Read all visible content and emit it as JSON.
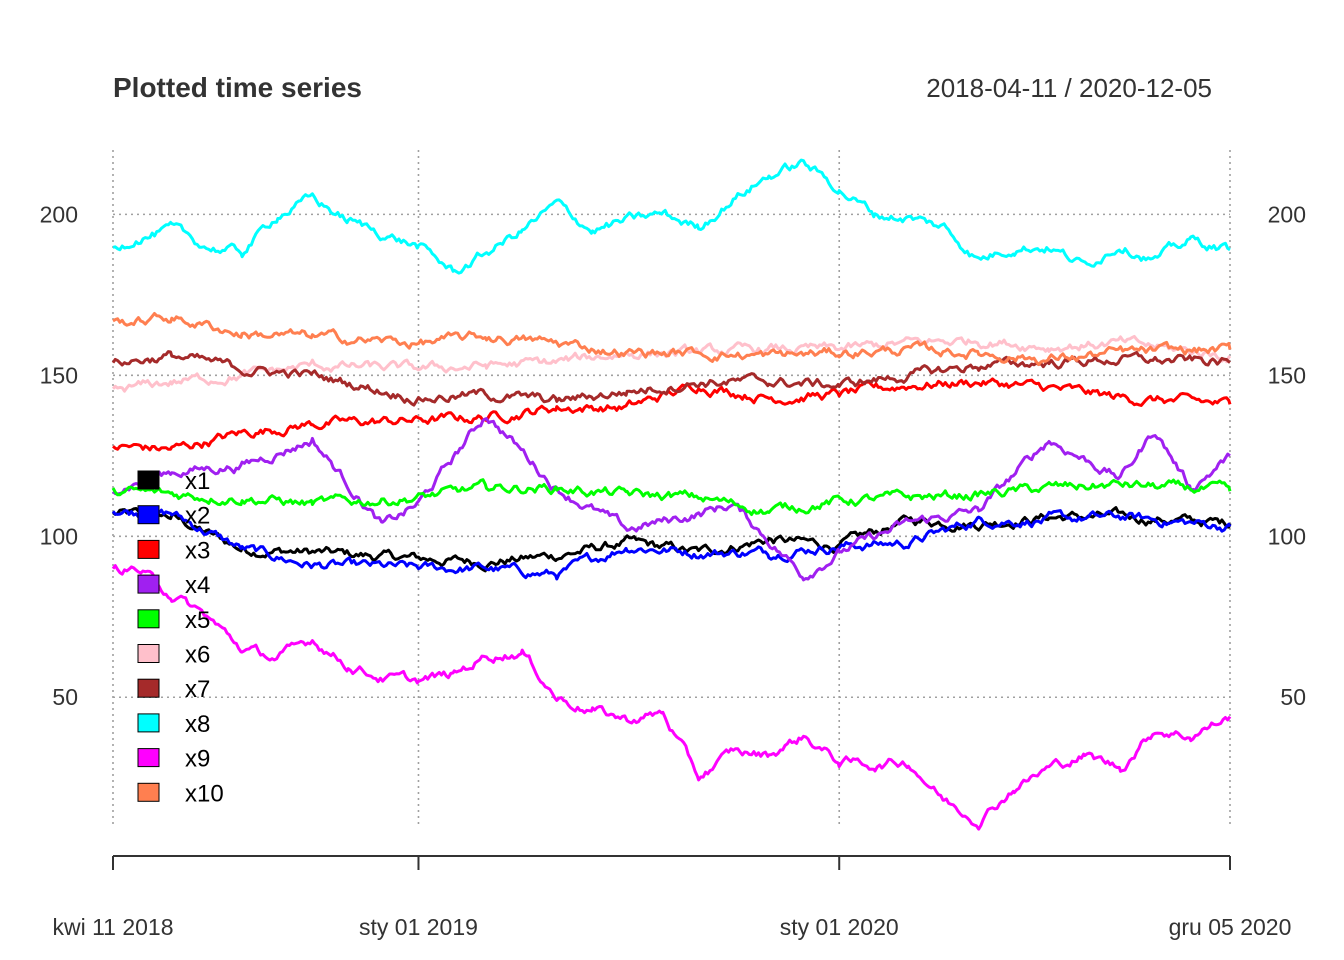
{
  "chart_data": {
    "type": "line",
    "title": "Plotted time series",
    "date_range_label": "2018-04-11 / 2020-12-05",
    "x_start": "2018-04-11",
    "x_end": "2020-12-05",
    "ylim": [
      10,
      220
    ],
    "grid": true,
    "legend_position": "left",
    "x_ticks": [
      {
        "date": "2018-04-11",
        "label": "kwi 11 2018"
      },
      {
        "date": "2019-01-01",
        "label": "sty 01 2019"
      },
      {
        "date": "2020-01-01",
        "label": "sty 01 2020"
      },
      {
        "date": "2020-12-05",
        "label": "gru 05 2020"
      }
    ],
    "y_ticks": [
      {
        "value": 50,
        "label": "50"
      },
      {
        "value": 100,
        "label": "100"
      },
      {
        "value": 150,
        "label": "150"
      },
      {
        "value": 200,
        "label": "200"
      }
    ],
    "series": [
      {
        "name": "x1",
        "color": "#000000",
        "points": [
          [
            "2018-04-11",
            107
          ],
          [
            "2018-06-01",
            106
          ],
          [
            "2018-08-01",
            96
          ],
          [
            "2018-10-01",
            95
          ],
          [
            "2019-01-01",
            93
          ],
          [
            "2019-03-01",
            92
          ],
          [
            "2019-05-01",
            94
          ],
          [
            "2019-07-01",
            98
          ],
          [
            "2019-09-01",
            95
          ],
          [
            "2019-11-01",
            99
          ],
          [
            "2020-01-01",
            97
          ],
          [
            "2020-03-01",
            105
          ],
          [
            "2020-05-01",
            104
          ],
          [
            "2020-07-01",
            106
          ],
          [
            "2020-09-01",
            106
          ],
          [
            "2020-12-05",
            104
          ]
        ]
      },
      {
        "name": "x2",
        "color": "#0000ff",
        "points": [
          [
            "2018-04-11",
            108
          ],
          [
            "2018-06-01",
            107
          ],
          [
            "2018-08-01",
            96
          ],
          [
            "2018-10-01",
            91
          ],
          [
            "2019-01-01",
            90
          ],
          [
            "2019-03-01",
            90
          ],
          [
            "2019-05-01",
            88
          ],
          [
            "2019-07-01",
            97
          ],
          [
            "2019-09-01",
            95
          ],
          [
            "2019-11-01",
            95
          ],
          [
            "2020-01-01",
            97
          ],
          [
            "2020-03-01",
            98
          ],
          [
            "2020-05-01",
            105
          ],
          [
            "2020-07-01",
            105
          ],
          [
            "2020-09-01",
            106
          ],
          [
            "2020-12-05",
            103
          ]
        ]
      },
      {
        "name": "x3",
        "color": "#ff0000",
        "points": [
          [
            "2018-04-11",
            128
          ],
          [
            "2018-06-01",
            127
          ],
          [
            "2018-08-01",
            132
          ],
          [
            "2018-10-01",
            135
          ],
          [
            "2019-01-01",
            136
          ],
          [
            "2019-03-01",
            137
          ],
          [
            "2019-05-01",
            140
          ],
          [
            "2019-07-01",
            140
          ],
          [
            "2019-09-01",
            147
          ],
          [
            "2019-11-01",
            143
          ],
          [
            "2020-01-01",
            144
          ],
          [
            "2020-03-01",
            147
          ],
          [
            "2020-05-01",
            148
          ],
          [
            "2020-07-01",
            146
          ],
          [
            "2020-09-01",
            143
          ],
          [
            "2020-12-05",
            141
          ]
        ]
      },
      {
        "name": "x4",
        "color": "#a020f0",
        "points": [
          [
            "2018-04-11",
            115
          ],
          [
            "2018-06-01",
            120
          ],
          [
            "2018-08-01",
            122
          ],
          [
            "2018-10-01",
            130
          ],
          [
            "2018-12-01",
            103
          ],
          [
            "2019-01-01",
            110
          ],
          [
            "2019-03-01",
            138
          ],
          [
            "2019-05-01",
            115
          ],
          [
            "2019-07-01",
            102
          ],
          [
            "2019-09-01",
            107
          ],
          [
            "2019-10-01",
            110
          ],
          [
            "2019-12-01",
            88
          ],
          [
            "2020-01-01",
            95
          ],
          [
            "2020-03-01",
            104
          ],
          [
            "2020-05-01",
            108
          ],
          [
            "2020-07-01",
            130
          ],
          [
            "2020-09-01",
            118
          ],
          [
            "2020-10-01",
            133
          ],
          [
            "2020-11-01",
            115
          ],
          [
            "2020-12-05",
            125
          ]
        ]
      },
      {
        "name": "x5",
        "color": "#00ff00",
        "points": [
          [
            "2018-04-11",
            114
          ],
          [
            "2018-06-01",
            113
          ],
          [
            "2018-08-01",
            112
          ],
          [
            "2018-10-01",
            110
          ],
          [
            "2019-01-01",
            112
          ],
          [
            "2019-03-01",
            115
          ],
          [
            "2019-05-01",
            115
          ],
          [
            "2019-07-01",
            113
          ],
          [
            "2019-09-01",
            112
          ],
          [
            "2019-11-01",
            108
          ],
          [
            "2020-01-01",
            111
          ],
          [
            "2020-03-01",
            112
          ],
          [
            "2020-05-01",
            113
          ],
          [
            "2020-07-01",
            115
          ],
          [
            "2020-09-01",
            116
          ],
          [
            "2020-12-05",
            114
          ]
        ]
      },
      {
        "name": "x6",
        "color": "#ffc0cb",
        "points": [
          [
            "2018-04-11",
            145
          ],
          [
            "2018-06-01",
            148
          ],
          [
            "2018-08-01",
            150
          ],
          [
            "2018-10-01",
            153
          ],
          [
            "2019-01-01",
            152
          ],
          [
            "2019-03-01",
            153
          ],
          [
            "2019-05-01",
            154
          ],
          [
            "2019-07-01",
            157
          ],
          [
            "2019-09-01",
            157
          ],
          [
            "2019-11-01",
            158
          ],
          [
            "2020-01-01",
            158
          ],
          [
            "2020-03-01",
            160
          ],
          [
            "2020-05-01",
            161
          ],
          [
            "2020-07-01",
            159
          ],
          [
            "2020-09-01",
            160
          ],
          [
            "2020-12-05",
            156
          ]
        ]
      },
      {
        "name": "x7",
        "color": "#a52a2a",
        "points": [
          [
            "2018-04-11",
            154
          ],
          [
            "2018-06-01",
            156
          ],
          [
            "2018-08-01",
            152
          ],
          [
            "2018-10-01",
            150
          ],
          [
            "2019-01-01",
            143
          ],
          [
            "2019-03-01",
            144
          ],
          [
            "2019-05-01",
            142
          ],
          [
            "2019-07-01",
            145
          ],
          [
            "2019-09-01",
            148
          ],
          [
            "2019-11-01",
            148
          ],
          [
            "2020-01-01",
            147
          ],
          [
            "2020-03-01",
            150
          ],
          [
            "2020-05-01",
            153
          ],
          [
            "2020-07-01",
            154
          ],
          [
            "2020-09-01",
            155
          ],
          [
            "2020-12-05",
            154
          ]
        ]
      },
      {
        "name": "x8",
        "color": "#00ffff",
        "points": [
          [
            "2018-04-11",
            189
          ],
          [
            "2018-05-01",
            193
          ],
          [
            "2018-06-01",
            195
          ],
          [
            "2018-07-01",
            190
          ],
          [
            "2018-08-01",
            188
          ],
          [
            "2018-09-01",
            200
          ],
          [
            "2018-10-01",
            205
          ],
          [
            "2018-11-01",
            198
          ],
          [
            "2019-01-01",
            190
          ],
          [
            "2019-02-01",
            182
          ],
          [
            "2019-03-01",
            188
          ],
          [
            "2019-04-01",
            195
          ],
          [
            "2019-05-01",
            203
          ],
          [
            "2019-06-01",
            195
          ],
          [
            "2019-07-01",
            198
          ],
          [
            "2019-08-01",
            200
          ],
          [
            "2019-09-01",
            196
          ],
          [
            "2019-10-01",
            205
          ],
          [
            "2019-11-01",
            212
          ],
          [
            "2019-12-01",
            216
          ],
          [
            "2020-01-01",
            208
          ],
          [
            "2020-02-01",
            200
          ],
          [
            "2020-03-01",
            199
          ],
          [
            "2020-04-01",
            196
          ],
          [
            "2020-05-01",
            186
          ],
          [
            "2020-06-01",
            190
          ],
          [
            "2020-07-01",
            190
          ],
          [
            "2020-08-01",
            184
          ],
          [
            "2020-09-01",
            191
          ],
          [
            "2020-10-01",
            186
          ],
          [
            "2020-11-01",
            192
          ],
          [
            "2020-12-05",
            189
          ]
        ]
      },
      {
        "name": "x9",
        "color": "#ff00ff",
        "points": [
          [
            "2018-04-11",
            90
          ],
          [
            "2018-05-01",
            90
          ],
          [
            "2018-06-01",
            82
          ],
          [
            "2018-07-01",
            75
          ],
          [
            "2018-08-01",
            65
          ],
          [
            "2018-09-01",
            62
          ],
          [
            "2018-10-01",
            68
          ],
          [
            "2018-11-01",
            60
          ],
          [
            "2018-12-01",
            56
          ],
          [
            "2019-01-01",
            55
          ],
          [
            "2019-02-01",
            57
          ],
          [
            "2019-03-01",
            63
          ],
          [
            "2019-04-01",
            64
          ],
          [
            "2019-05-01",
            50
          ],
          [
            "2019-06-01",
            46
          ],
          [
            "2019-07-01",
            43
          ],
          [
            "2019-08-01",
            45
          ],
          [
            "2019-09-01",
            25
          ],
          [
            "2019-10-01",
            33
          ],
          [
            "2019-11-01",
            32
          ],
          [
            "2019-12-01",
            38
          ],
          [
            "2020-01-01",
            30
          ],
          [
            "2020-02-01",
            29
          ],
          [
            "2020-03-01",
            30
          ],
          [
            "2020-04-01",
            18
          ],
          [
            "2020-05-01",
            12
          ],
          [
            "2020-06-01",
            22
          ],
          [
            "2020-07-01",
            28
          ],
          [
            "2020-08-01",
            32
          ],
          [
            "2020-09-01",
            28
          ],
          [
            "2020-10-01",
            40
          ],
          [
            "2020-11-01",
            38
          ],
          [
            "2020-12-05",
            44
          ]
        ]
      },
      {
        "name": "x10",
        "color": "#ff7f50",
        "points": [
          [
            "2018-04-11",
            166
          ],
          [
            "2018-06-01",
            168
          ],
          [
            "2018-08-01",
            163
          ],
          [
            "2018-10-01",
            162
          ],
          [
            "2019-01-01",
            160
          ],
          [
            "2019-03-01",
            162
          ],
          [
            "2019-05-01",
            160
          ],
          [
            "2019-07-01",
            157
          ],
          [
            "2019-09-01",
            157
          ],
          [
            "2019-11-01",
            156
          ],
          [
            "2020-01-01",
            157
          ],
          [
            "2020-03-01",
            158
          ],
          [
            "2020-05-01",
            157
          ],
          [
            "2020-07-01",
            155
          ],
          [
            "2020-09-01",
            157
          ],
          [
            "2020-12-05",
            158
          ]
        ]
      }
    ]
  }
}
